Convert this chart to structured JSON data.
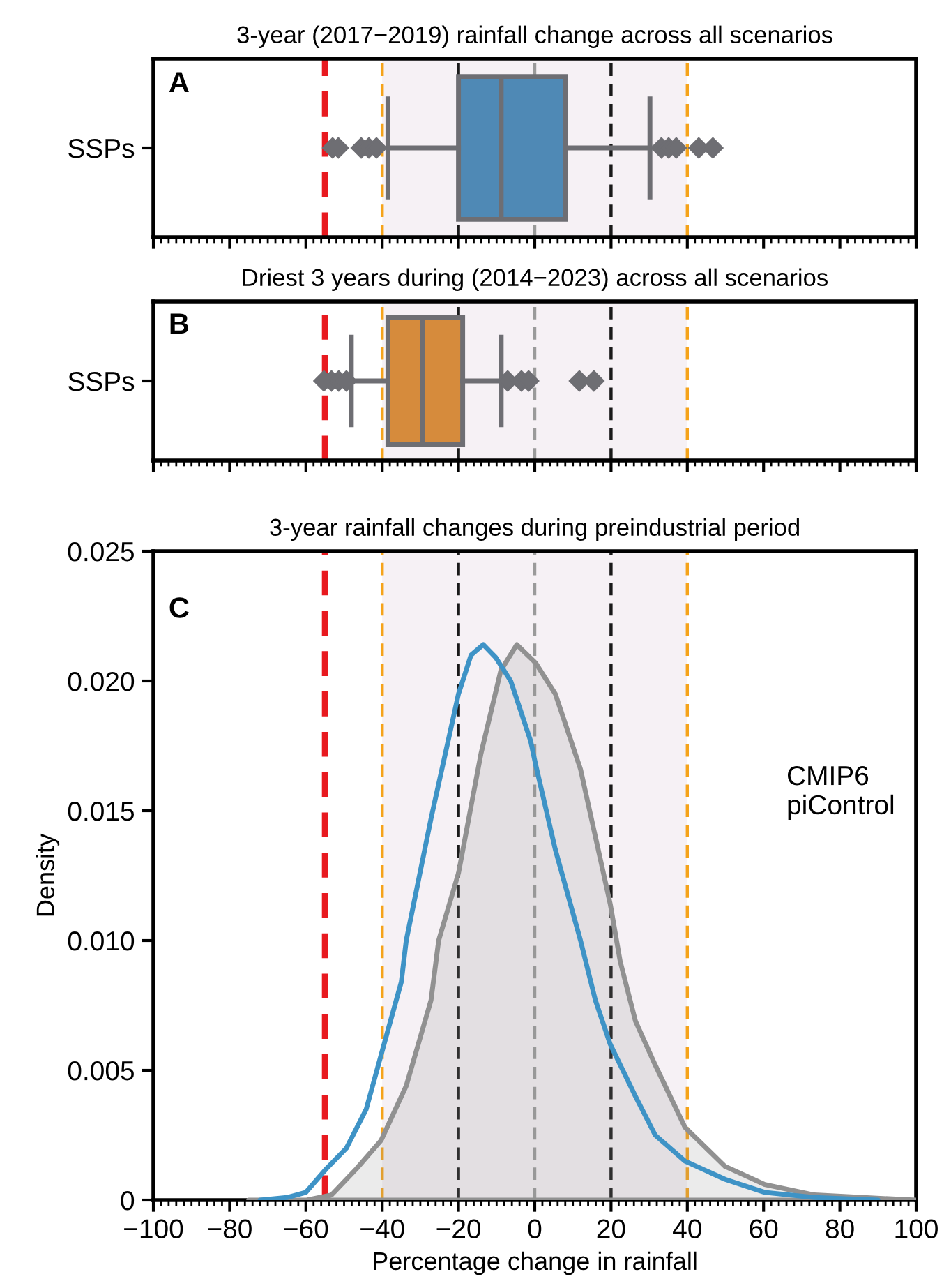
{
  "chart_data": [
    {
      "type": "box",
      "orientation": "horizontal",
      "title": "3-year (2017−2019) rainfall change across all scenarios",
      "categories": [
        "SSPs"
      ],
      "xlim": [
        -100,
        100
      ],
      "xticks": [
        -100,
        -80,
        -60,
        -40,
        -20,
        0,
        20,
        40,
        60,
        80,
        100
      ],
      "tick_labels": "y",
      "legend": false,
      "grid": false,
      "annotations": [
        "A"
      ],
      "series": [
        {
          "color": "#4f89b5",
          "boxes": [
            {
              "low": -38.5,
              "q1": -20,
              "median": -8.8,
              "q3": 8,
              "high": 30.2,
              "outliers": [
                -53,
                -51.5,
                -45.5,
                -43.5,
                -41.5,
                33.2,
                35.1,
                37.1,
                43,
                46.7
              ]
            }
          ]
        }
      ],
      "ref_lines": [
        {
          "axis": "x",
          "value": -55,
          "color": "#e8191f",
          "line_style": "dashed"
        },
        {
          "axis": "x",
          "value": -40,
          "color": "#f5a31a",
          "line_style": "dashed"
        },
        {
          "axis": "x",
          "value": 40,
          "color": "#f5a31a",
          "line_style": "dashed"
        },
        {
          "axis": "x",
          "value": -20,
          "color": "#1a1a1a",
          "line_style": "dashed"
        },
        {
          "axis": "x",
          "value": 20,
          "color": "#1a1a1a",
          "line_style": "dashed"
        },
        {
          "axis": "x",
          "value": 0,
          "color": "#9a9a9a",
          "line_style": "dashed"
        }
      ],
      "bands": [
        {
          "axis": "x",
          "from": -40,
          "to": 40,
          "color": "#f6f1f5"
        }
      ]
    },
    {
      "type": "box",
      "orientation": "horizontal",
      "title": "Driest 3 years during (2014−2023) across all scenarios",
      "categories": [
        "SSPs"
      ],
      "xlim": [
        -100,
        100
      ],
      "xticks": [
        -100,
        -80,
        -60,
        -40,
        -20,
        0,
        20,
        40,
        60,
        80,
        100
      ],
      "tick_labels": "y",
      "legend": false,
      "grid": false,
      "annotations": [
        "B"
      ],
      "series": [
        {
          "color": "#d68b3c",
          "boxes": [
            {
              "low": -48.1,
              "q1": -38.5,
              "median": -29.5,
              "q3": -18.9,
              "high": -8.8,
              "outliers": [
                -55.3,
                -53.3,
                -51.4,
                -49.4,
                -7.1,
                -3.5,
                -1.6,
                11.7,
                15.5
              ]
            }
          ]
        }
      ],
      "ref_lines": [
        {
          "axis": "x",
          "value": -55,
          "color": "#e8191f",
          "line_style": "dashed"
        },
        {
          "axis": "x",
          "value": -40,
          "color": "#f5a31a",
          "line_style": "dashed"
        },
        {
          "axis": "x",
          "value": 40,
          "color": "#f5a31a",
          "line_style": "dashed"
        },
        {
          "axis": "x",
          "value": -20,
          "color": "#1a1a1a",
          "line_style": "dashed"
        },
        {
          "axis": "x",
          "value": 20,
          "color": "#1a1a1a",
          "line_style": "dashed"
        },
        {
          "axis": "x",
          "value": 0,
          "color": "#9a9a9a",
          "line_style": "dashed"
        }
      ],
      "bands": [
        {
          "axis": "x",
          "from": -40,
          "to": 40,
          "color": "#f6f1f5"
        }
      ]
    },
    {
      "type": "line",
      "title": "3-year rainfall changes during preindustrial period",
      "xlabel": "Percentage change in rainfall",
      "ylabel": "Density",
      "xlim": [
        -100,
        100
      ],
      "xticks": [
        {
          "value": -100,
          "label": "−100"
        },
        {
          "value": -80,
          "label": "−80"
        },
        {
          "value": -60,
          "label": "−60"
        },
        {
          "value": -40,
          "label": "−40"
        },
        {
          "value": -20,
          "label": "−20"
        },
        0,
        20,
        40,
        60,
        80,
        100
      ],
      "ylim": [
        0,
        0.025
      ],
      "yticks": [
        0,
        0.005,
        {
          "value": 0.01,
          "label": "0.010"
        },
        0.015,
        {
          "value": 0.02,
          "label": "0.020"
        },
        0.025
      ],
      "legend": false,
      "grid": false,
      "marker": "none",
      "line_style": "solid",
      "annotations": [
        "C",
        "CMIP6\npiControl"
      ],
      "series": [
        {
          "type": "area",
          "color": "#919191",
          "x": [
            -75,
            -59.8,
            -53.3,
            -46.8,
            -40.3,
            -33.7,
            -27.2,
            -25.2,
            -20,
            -14.1,
            -8.9,
            -4.7,
            0.2,
            5.4,
            12,
            19.8,
            22.4,
            26.4,
            31.6,
            39.4,
            49.9,
            60.3,
            73.3,
            100
          ],
          "values": [
            0,
            0,
            0.0002,
            0.0012,
            0.0023,
            0.0044,
            0.0077,
            0.01,
            0.0126,
            0.0172,
            0.0204,
            0.0214,
            0.0207,
            0.0195,
            0.0166,
            0.0114,
            0.0092,
            0.0069,
            0.0052,
            0.0028,
            0.0013,
            0.0006,
            0.0002,
            0
          ]
        },
        {
          "type": "line",
          "color": "#3e93c6",
          "x": [
            -72,
            -65,
            -60,
            -54.7,
            -49.4,
            -44.2,
            -39.9,
            -35,
            -33.7,
            -27.2,
            -20,
            -16.7,
            -13.5,
            -10.2,
            -6.3,
            -1.1,
            0.2,
            5.4,
            12,
            15.9,
            19.8,
            26.4,
            31.6,
            39.4,
            49.9,
            60.3,
            73.3,
            90
          ],
          "values": [
            0,
            0.0001,
            0.0003,
            0.0012,
            0.002,
            0.0035,
            0.0058,
            0.0084,
            0.01,
            0.0147,
            0.0195,
            0.021,
            0.0214,
            0.0209,
            0.02,
            0.0177,
            0.0168,
            0.0135,
            0.01,
            0.0077,
            0.006,
            0.004,
            0.0025,
            0.0015,
            0.0008,
            0.0003,
            0.0001,
            0
          ]
        }
      ],
      "ref_lines": [
        {
          "axis": "x",
          "value": -55,
          "color": "#e8191f",
          "line_style": "dashed"
        },
        {
          "axis": "x",
          "value": -40,
          "color": "#f5a31a",
          "line_style": "dashed"
        },
        {
          "axis": "x",
          "value": 40,
          "color": "#f5a31a",
          "line_style": "dashed"
        },
        {
          "axis": "x",
          "value": -20,
          "color": "#1a1a1a",
          "line_style": "dashed"
        },
        {
          "axis": "x",
          "value": 20,
          "color": "#1a1a1a",
          "line_style": "dashed"
        },
        {
          "axis": "x",
          "value": 0,
          "color": "#9a9a9a",
          "line_style": "dashed"
        }
      ],
      "bands": [
        {
          "axis": "x",
          "from": -40,
          "to": 40,
          "color": "#f6f1f5"
        }
      ]
    }
  ]
}
